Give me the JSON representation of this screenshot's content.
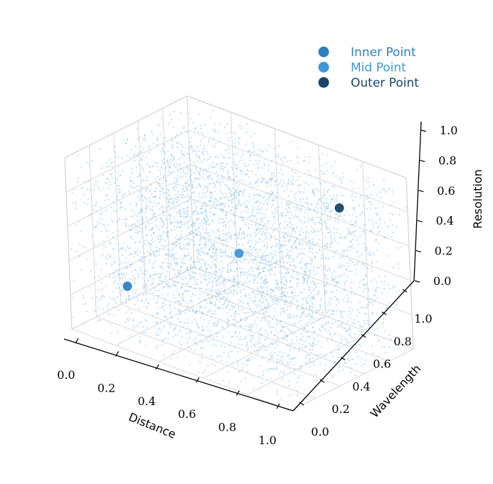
{
  "chart_data": {
    "type": "scatter",
    "projection": "3d",
    "xlabel": "Distance",
    "ylabel": "Wavelength",
    "zlabel": "Resolution",
    "xlim": [
      0,
      1
    ],
    "ylim": [
      0,
      1
    ],
    "zlim": [
      0,
      1
    ],
    "x_ticks": [
      "0.0",
      "0.2",
      "0.4",
      "0.6",
      "0.8",
      "1.0"
    ],
    "y_ticks": [
      "0.0",
      "0.2",
      "0.4",
      "0.6",
      "0.8",
      "1.0"
    ],
    "z_ticks": [
      "0.0",
      "0.2",
      "0.4",
      "0.6",
      "0.8",
      "1.0"
    ],
    "grid": true,
    "legend_position": "top-right",
    "background_cloud": {
      "description": "uniform random points in the unit cube",
      "count": 4500,
      "color": "#8ec5ec"
    },
    "series": [
      {
        "name": "Inner Point",
        "color": "#2f7fc0",
        "points": [
          {
            "x": 0.15,
            "y": 0.2,
            "z": 0.25
          }
        ]
      },
      {
        "name": "Mid Point",
        "color": "#3d97dd",
        "points": [
          {
            "x": 0.5,
            "y": 0.5,
            "z": 0.5
          }
        ]
      },
      {
        "name": "Outer Point",
        "color": "#1b4567",
        "points": [
          {
            "x": 0.8,
            "y": 0.8,
            "z": 0.8
          }
        ]
      }
    ]
  }
}
